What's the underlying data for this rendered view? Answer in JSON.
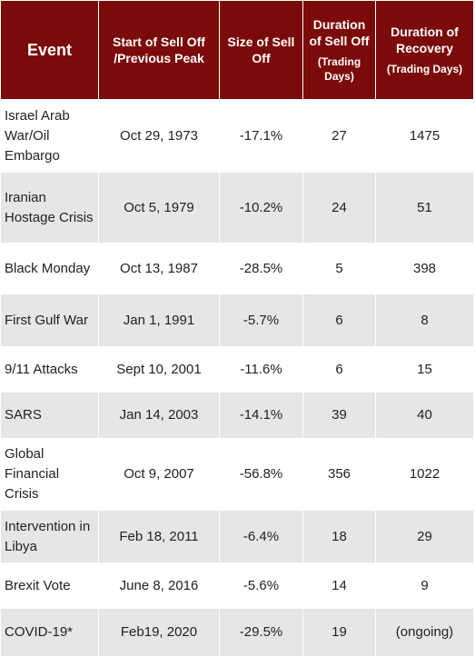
{
  "table": {
    "header": [
      {
        "title": "Event"
      },
      {
        "title": "Start of Sell Off /Previous Peak"
      },
      {
        "title": "Size of Sell Off"
      },
      {
        "title": "Duration of Sell Off",
        "note": "(Trading Days)"
      },
      {
        "title": "Duration of Recovery",
        "note": "(Trading Days)"
      }
    ],
    "rows": [
      [
        "Israel Arab War/Oil Embargo",
        "Oct 29, 1973",
        "-17.1%",
        "27",
        "1475"
      ],
      [
        "Iranian Hostage Crisis",
        "Oct 5, 1979",
        "-10.2%",
        "24",
        "51"
      ],
      [
        "Black Monday",
        "Oct 13, 1987",
        "-28.5%",
        "5",
        "398"
      ],
      [
        "First Gulf War",
        "Jan 1, 1991",
        "-5.7%",
        "6",
        "8"
      ],
      [
        "9/11 Attacks",
        "Sept 10, 2001",
        "-11.6%",
        "6",
        "15"
      ],
      [
        "SARS",
        "Jan 14, 2003",
        "-14.1%",
        "39",
        "40"
      ],
      [
        "Global Financial Crisis",
        "Oct 9, 2007",
        "-56.8%",
        "356",
        "1022"
      ],
      [
        "Intervention in Libya",
        "Feb 18, 2011",
        "-6.4%",
        "18",
        "29"
      ],
      [
        "Brexit Vote",
        "June 8, 2016",
        "-5.6%",
        "14",
        "9"
      ],
      [
        "COVID-19*",
        "Feb19, 2020",
        "-29.5%",
        "19",
        "(ongoing)"
      ]
    ]
  }
}
